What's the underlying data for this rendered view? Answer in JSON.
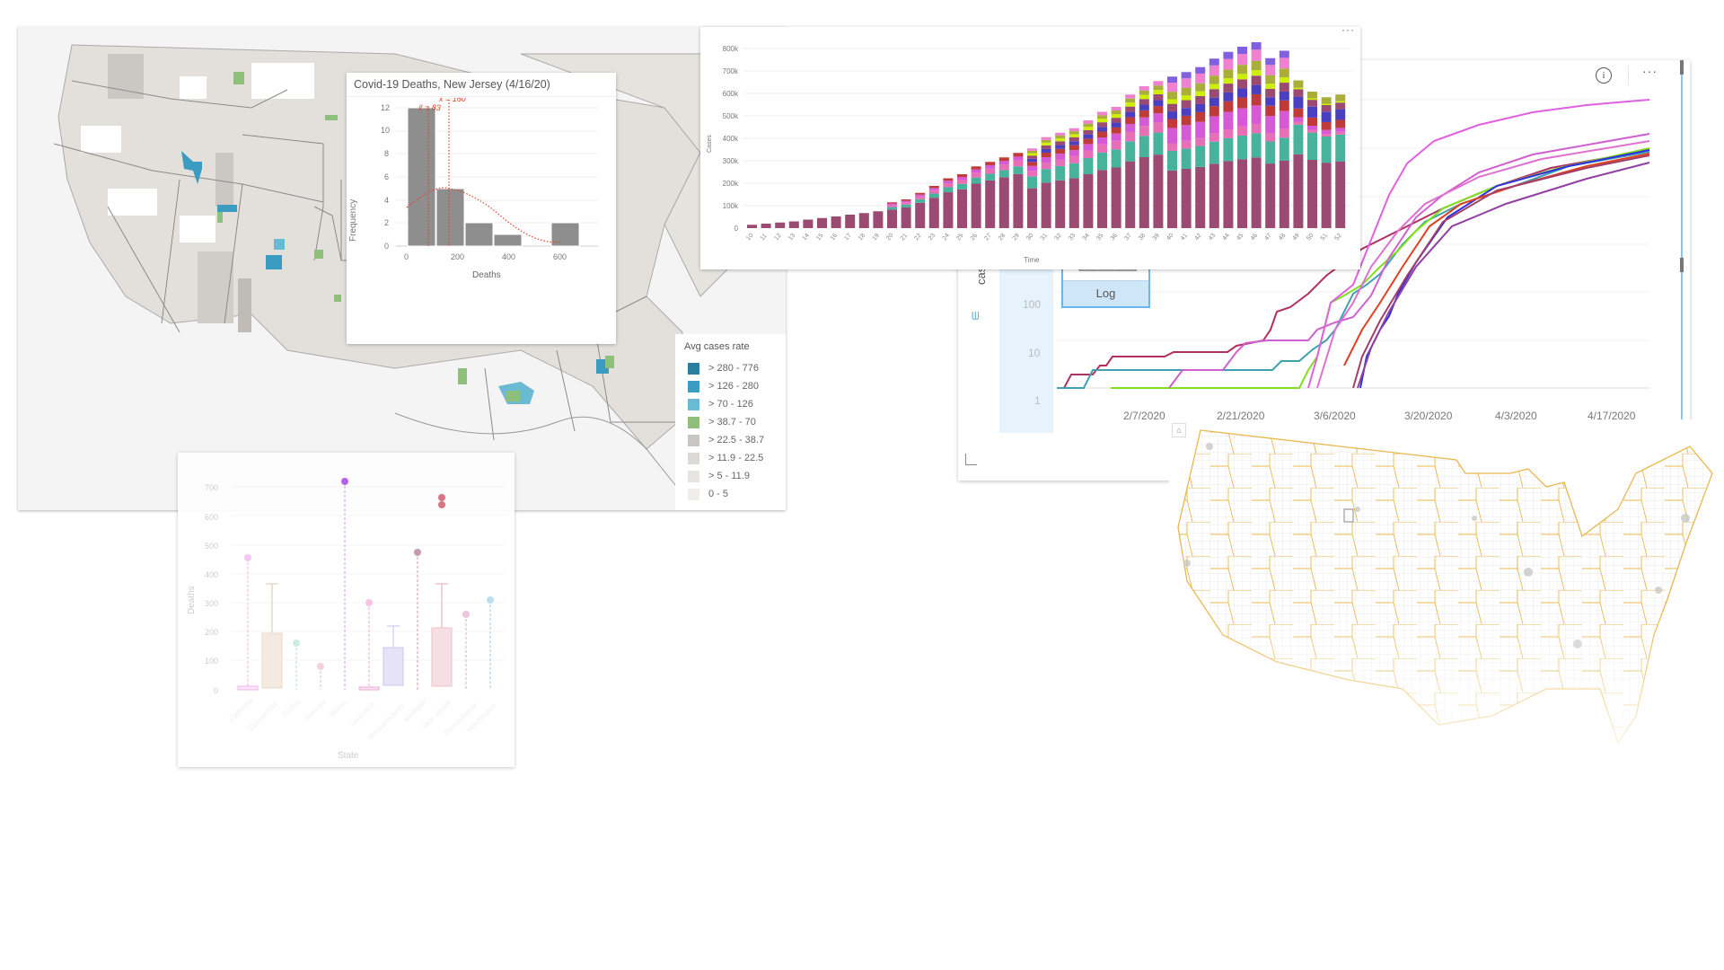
{
  "map_left": {
    "legend": {
      "title": "Avg cases rate",
      "items": [
        {
          "label": "> 280 - 776",
          "color": "#2a7f9e"
        },
        {
          "label": "> 126 - 280",
          "color": "#3a9cc0"
        },
        {
          "label": "> 70 - 126",
          "color": "#6bbad3"
        },
        {
          "label": "> 38.7 - 70",
          "color": "#8ec07c"
        },
        {
          "label": "> 22.5 - 38.7",
          "color": "#c8c6c3"
        },
        {
          "label": "> 11.9 - 22.5",
          "color": "#dcdad6"
        },
        {
          "label": "> 5 - 11.9",
          "color": "#e6e4e0"
        },
        {
          "label": "0 - 5",
          "color": "#efeeeb"
        }
      ]
    }
  },
  "histogram": {
    "title": "Covid-19 Deaths, New Jersey (4/16/20)"
  },
  "line_chart": {
    "y_axis_label": "cases",
    "scale_button": "Log",
    "info_icon": "info-icon",
    "more_icon": "ellipsis-icon"
  },
  "bar_chart": {
    "more_icon": "ellipsis-icon"
  },
  "chart_data": [
    {
      "type": "bar",
      "subtype": "histogram",
      "title": "Covid-19 Deaths, New Jersey (4/16/20)",
      "xlabel": "Deaths",
      "ylabel": "Frequency",
      "bins": [
        [
          0,
          111
        ],
        [
          111,
          222
        ],
        [
          222,
          333
        ],
        [
          333,
          444
        ],
        [
          444,
          555
        ],
        [
          555,
          666
        ]
      ],
      "values": [
        12,
        5,
        2,
        1,
        0,
        2
      ],
      "xticks": [
        0,
        200,
        400,
        600
      ],
      "yticks": [
        0,
        2,
        4,
        6,
        8,
        10,
        12
      ],
      "ylim": [
        0,
        12
      ],
      "annotations": [
        {
          "label": "x̄ = 160",
          "x": 160,
          "style": "dotted red line"
        },
        {
          "label": "x̃ = 83",
          "x": 83,
          "style": "dotted red line"
        }
      ],
      "overlay": "normal distribution curve (dotted red)"
    },
    {
      "type": "bar",
      "subtype": "stacked",
      "title": "",
      "xlabel": "Time",
      "ylabel": "Cases",
      "ylim": [
        0,
        850000
      ],
      "yticks": [
        "0",
        "100k",
        "200k",
        "300k",
        "400k",
        "500k",
        "600k",
        "700k",
        "800k"
      ],
      "categories": [
        "10",
        "11",
        "12",
        "13",
        "14",
        "15",
        "16",
        "17",
        "18",
        "19",
        "20",
        "21",
        "22",
        "23",
        "24",
        "25",
        "26",
        "27",
        "28",
        "29",
        "30",
        "31",
        "32",
        "33",
        "34",
        "35",
        "36",
        "37",
        "38",
        "39",
        "40",
        "41",
        "42",
        "43",
        "44",
        "45",
        "46",
        "47",
        "48",
        "49",
        "50",
        "51",
        "52"
      ],
      "totals": [
        15000,
        20000,
        25000,
        30000,
        38000,
        45000,
        52000,
        60000,
        67000,
        75000,
        115000,
        128000,
        157000,
        188000,
        222000,
        240000,
        275000,
        295000,
        315000,
        335000,
        355000,
        405000,
        425000,
        445000,
        480000,
        518000,
        540000,
        595000,
        632000,
        655000,
        675000,
        695000,
        717000,
        755000,
        785000,
        808000,
        828000,
        757000,
        790000,
        658000,
        608000,
        583000,
        595000
      ],
      "series_colors": [
        "#9b4a72",
        "#a8ae38",
        "#ccf000",
        "#d65ad6",
        "#e86fb5",
        "#48b39d",
        "#c03a3a",
        "#4a3fc0",
        "#ffd200",
        "#f080d0",
        "#8060e0"
      ]
    },
    {
      "type": "line",
      "title": "",
      "xlabel": "",
      "ylabel": "cases",
      "yscale": "log",
      "yticks": [
        1,
        10,
        100
      ],
      "xticks": [
        "2/7/2020",
        "2/21/2020",
        "3/6/2020",
        "3/20/2020",
        "4/3/2020",
        "4/17/2020"
      ],
      "series_count": 11,
      "series_colors": [
        "#e060e0",
        "#d050c0",
        "#b03060",
        "#80e020",
        "#3030e0",
        "#40a0b0",
        "#e04020",
        "#a0406a",
        "#d060a0",
        "#a08040",
        "#9040a0"
      ],
      "notes": "cumulative cases per region, exponential rise early March leveling by mid April"
    },
    {
      "type": "box",
      "xlabel": "State",
      "ylabel": "Deaths",
      "yticks": [
        0,
        100,
        200,
        300,
        400,
        500,
        600,
        700
      ],
      "categories": [
        "California",
        "Connecticut",
        "Florida",
        "Georgia",
        "Illinois",
        "Louisiana",
        "Massachusetts",
        "Michigan",
        "New Jersey",
        "Pennsylvania",
        "Washington"
      ],
      "boxes": [
        {
          "q1": 0,
          "q3": 10,
          "max": 35,
          "outliers": [
            455
          ]
        },
        {
          "q1": 5,
          "q3": 195,
          "max": 365,
          "outliers": []
        },
        {
          "q1": 0,
          "q3": 2,
          "max": 12,
          "outliers": [
            160
          ]
        },
        {
          "q1": 0,
          "q3": 2,
          "max": 5,
          "outliers": [
            80
          ]
        },
        {
          "q1": 0,
          "q3": 0,
          "max": 0,
          "outliers": [
            720
          ]
        },
        {
          "q1": 0,
          "q3": 10,
          "max": 25,
          "outliers": [
            300
          ]
        },
        {
          "q1": 15,
          "q3": 145,
          "max": 220,
          "outliers": []
        },
        {
          "q1": 0,
          "q3": 2,
          "max": 12,
          "outliers": [
            475
          ]
        },
        {
          "q1": 12,
          "q3": 215,
          "max": 365,
          "outliers": [
            640,
            665
          ]
        },
        {
          "q1": 0,
          "q3": 5,
          "max": 20,
          "outliers": [
            262
          ]
        },
        {
          "q1": 0,
          "q3": 2,
          "max": 12,
          "outliers": [
            312
          ]
        }
      ],
      "colors": [
        "#f0a8e8",
        "#d9c0a0",
        "#a8dcc8",
        "#e8b0c8",
        "#b050f0",
        "#f0a0d0",
        "#b8b0e8",
        "#b07890",
        "#d86878",
        "#e0a0c0",
        "#90c8e8"
      ]
    }
  ]
}
